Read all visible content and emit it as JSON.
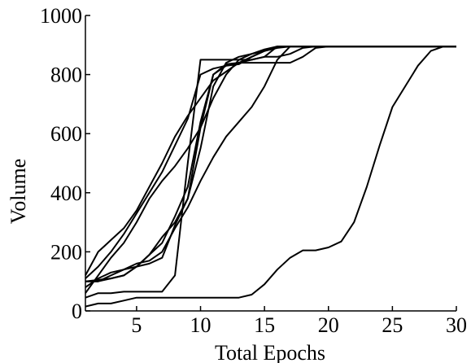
{
  "chart_data": {
    "type": "line",
    "title": "",
    "xlabel": "Total Epochs",
    "ylabel": "Volume",
    "xlim": [
      1,
      30
    ],
    "ylim": [
      0,
      1000
    ],
    "x_ticks": [
      5,
      10,
      15,
      20,
      25,
      30
    ],
    "y_ticks": [
      0,
      200,
      400,
      600,
      800,
      1000
    ],
    "grid": false,
    "legend": "none",
    "line_color": "#000000",
    "series": [
      {
        "x": [
          1,
          2,
          3,
          4,
          5,
          6,
          7,
          8,
          9,
          10,
          11,
          12,
          13,
          14,
          15,
          16,
          17,
          18,
          19,
          20,
          21,
          22,
          23,
          24,
          25,
          26,
          27,
          28,
          29,
          30
        ],
        "y": [
          15,
          25,
          25,
          35,
          45,
          45,
          45,
          45,
          45,
          45,
          45,
          45,
          45,
          55,
          90,
          140,
          180,
          205,
          205,
          215,
          235,
          300,
          420,
          560,
          690,
          760,
          830,
          880,
          895,
          895
        ]
      },
      {
        "x": [
          1,
          2,
          3,
          4,
          5,
          6,
          7,
          8,
          9,
          10,
          11,
          12,
          13,
          14,
          15,
          16,
          17,
          18,
          19,
          20,
          25,
          30
        ],
        "y": [
          45,
          60,
          60,
          65,
          65,
          65,
          65,
          120,
          500,
          850,
          850,
          850,
          850,
          850,
          860,
          895,
          895,
          895,
          895,
          895,
          895,
          895
        ]
      },
      {
        "x": [
          1,
          2,
          3,
          4,
          5,
          6,
          7,
          8,
          9,
          10,
          11,
          12,
          13,
          14,
          15,
          16,
          17,
          18,
          19,
          20,
          25,
          30
        ],
        "y": [
          100,
          100,
          110,
          120,
          150,
          190,
          230,
          320,
          420,
          640,
          800,
          835,
          840,
          840,
          840,
          840,
          840,
          860,
          890,
          895,
          895,
          895
        ]
      },
      {
        "x": [
          1,
          2,
          3,
          4,
          5,
          6,
          7,
          8,
          9,
          10,
          11,
          12,
          13,
          14,
          15,
          16,
          17,
          18,
          19,
          20,
          25,
          30
        ],
        "y": [
          100,
          100,
          120,
          140,
          160,
          170,
          200,
          280,
          350,
          440,
          520,
          590,
          640,
          690,
          760,
          850,
          895,
          895,
          895,
          895,
          895,
          895
        ]
      },
      {
        "x": [
          1,
          2,
          3,
          4,
          5,
          6,
          7,
          8,
          9,
          10,
          11,
          12,
          13,
          14,
          15,
          16,
          17,
          18,
          19,
          20,
          25,
          30
        ],
        "y": [
          60,
          120,
          180,
          230,
          300,
          380,
          440,
          490,
          550,
          620,
          720,
          800,
          850,
          870,
          885,
          895,
          895,
          895,
          895,
          895,
          895,
          895
        ]
      },
      {
        "x": [
          1,
          2,
          3,
          4,
          5,
          6,
          7,
          8,
          9,
          10,
          11,
          12,
          13,
          14,
          15,
          16,
          17,
          18,
          19,
          20,
          25,
          30
        ],
        "y": [
          110,
          150,
          200,
          260,
          330,
          400,
          470,
          560,
          650,
          800,
          820,
          830,
          835,
          860,
          880,
          895,
          895,
          895,
          895,
          895,
          895,
          895
        ]
      },
      {
        "x": [
          1,
          2,
          3,
          4,
          5,
          6,
          7,
          8,
          9,
          10,
          11,
          12,
          13,
          14,
          15,
          16,
          17,
          18,
          19,
          20,
          25,
          30
        ],
        "y": [
          80,
          110,
          130,
          140,
          150,
          160,
          180,
          290,
          380,
          550,
          760,
          840,
          860,
          870,
          880,
          890,
          895,
          895,
          895,
          895,
          895,
          895
        ]
      },
      {
        "x": [
          1,
          2,
          3,
          4,
          5,
          6,
          7,
          8,
          9,
          10,
          11,
          12,
          13,
          14,
          15,
          16,
          17,
          18,
          19,
          20,
          25,
          30
        ],
        "y": [
          120,
          200,
          240,
          280,
          340,
          420,
          500,
          590,
          660,
          720,
          780,
          810,
          840,
          860,
          880,
          895,
          895,
          895,
          895,
          895,
          895,
          895
        ]
      },
      {
        "x": [
          1,
          2,
          3,
          4,
          5,
          6,
          7,
          8,
          9,
          10,
          11,
          12,
          13,
          14,
          15,
          16,
          17,
          18,
          19,
          20,
          25,
          30
        ],
        "y": [
          100,
          105,
          110,
          120,
          150,
          190,
          250,
          300,
          380,
          620,
          800,
          830,
          840,
          850,
          860,
          860,
          870,
          890,
          895,
          895,
          895,
          895
        ]
      }
    ]
  }
}
